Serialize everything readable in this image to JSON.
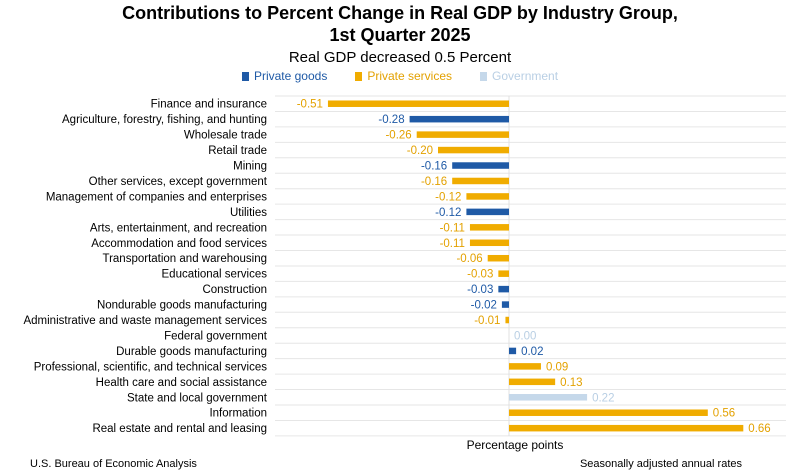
{
  "chart_data": {
    "type": "bar",
    "orientation": "horizontal",
    "title_line1": "Contributions to Percent Change in Real GDP by Industry Group,",
    "title_line2": "1st Quarter 2025",
    "subtitle": "Real GDP decreased 0.5 Percent",
    "xlabel": "Percentage points",
    "ylabel": "",
    "xlim": [
      -0.65,
      0.72
    ],
    "grid": "horizontal lines between categories",
    "legend_position": "top-center",
    "series": [
      {
        "name": "Private goods",
        "color": "#1f5aa6"
      },
      {
        "name": "Private services",
        "color": "#f0ac00"
      },
      {
        "name": "Government",
        "color": "#c5d8ea"
      }
    ],
    "categories": [
      "Finance and insurance",
      "Agriculture, forestry, fishing, and hunting",
      "Wholesale trade",
      "Retail trade",
      "Mining",
      "Other services, except government",
      "Management of companies and enterprises",
      "Utilities",
      "Arts, entertainment, and recreation",
      "Accommodation and food services",
      "Transportation and warehousing",
      "Educational services",
      "Construction",
      "Nondurable goods manufacturing",
      "Administrative and waste management services",
      "Federal government",
      "Durable goods manufacturing",
      "Professional, scientific, and technical services",
      "Health care and social assistance",
      "State and local government",
      "Information",
      "Real estate and rental and leasing"
    ],
    "values": [
      -0.51,
      -0.28,
      -0.26,
      -0.2,
      -0.16,
      -0.16,
      -0.12,
      -0.12,
      -0.11,
      -0.11,
      -0.06,
      -0.03,
      -0.03,
      -0.02,
      -0.01,
      0.0,
      0.02,
      0.09,
      0.13,
      0.22,
      0.56,
      0.66
    ],
    "data_labels": [
      "-0.51",
      "-0.28",
      "-0.26",
      "-0.20",
      "-0.16",
      "-0.16",
      "-0.12",
      "-0.12",
      "-0.11",
      "-0.11",
      "-0.06",
      "-0.03",
      "-0.03",
      "-0.02",
      "-0.01",
      "0.00",
      "0.02",
      "0.09",
      "0.13",
      "0.22",
      "0.56",
      "0.66"
    ],
    "series_index": [
      1,
      0,
      1,
      1,
      0,
      1,
      1,
      0,
      1,
      1,
      1,
      1,
      0,
      0,
      1,
      2,
      0,
      1,
      1,
      2,
      1,
      1
    ]
  },
  "footer": {
    "source": "U.S. Bureau of Economic Analysis",
    "note": "Seasonally adjusted annual rates"
  }
}
